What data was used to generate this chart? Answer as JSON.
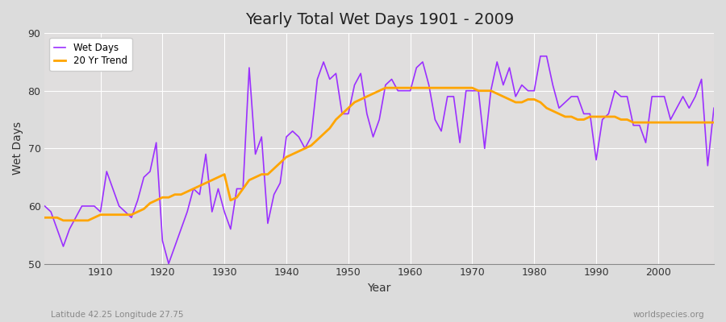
{
  "title": "Yearly Total Wet Days 1901 - 2009",
  "xlabel": "Year",
  "ylabel": "Wet Days",
  "lat_lon_label": "Latitude 42.25 Longitude 27.75",
  "watermark": "worldspecies.org",
  "ylim": [
    50,
    90
  ],
  "xlim": [
    1901,
    2009
  ],
  "yticks": [
    50,
    60,
    70,
    80,
    90
  ],
  "xticks": [
    1910,
    1920,
    1930,
    1940,
    1950,
    1960,
    1970,
    1980,
    1990,
    2000
  ],
  "wet_days_color": "#9B30FF",
  "trend_color": "#FFA500",
  "background_color": "#DCDCDC",
  "plot_bg_color": "#E0DEDE",
  "grid_color": "#FFFFFF",
  "wet_days": [
    60,
    59,
    56,
    53,
    56,
    58,
    60,
    60,
    60,
    59,
    66,
    63,
    60,
    59,
    58,
    61,
    65,
    66,
    71,
    54,
    50,
    53,
    56,
    59,
    63,
    62,
    69,
    59,
    63,
    59,
    56,
    63,
    63,
    84,
    69,
    72,
    57,
    62,
    64,
    72,
    73,
    72,
    70,
    72,
    82,
    85,
    82,
    83,
    76,
    76,
    81,
    83,
    76,
    72,
    75,
    81,
    82,
    80,
    80,
    80,
    84,
    85,
    81,
    75,
    73,
    79,
    79,
    71,
    80,
    80,
    80,
    70,
    80,
    85,
    81,
    84,
    79,
    81,
    80,
    80,
    86,
    86,
    81,
    77,
    78,
    79,
    79,
    76,
    76,
    68,
    75,
    76,
    80,
    79,
    79,
    74,
    74,
    71,
    79,
    79,
    79,
    75,
    77,
    79,
    77,
    79,
    82,
    67,
    77
  ],
  "trend": [
    58.0,
    58.0,
    58.0,
    57.5,
    57.5,
    57.5,
    57.5,
    57.5,
    58.0,
    58.5,
    58.5,
    58.5,
    58.5,
    58.5,
    58.5,
    59.0,
    59.5,
    60.5,
    61.0,
    61.5,
    61.5,
    62.0,
    62.0,
    62.5,
    63.0,
    63.5,
    64.0,
    64.5,
    65.0,
    65.5,
    61.0,
    61.5,
    63.0,
    64.5,
    65.0,
    65.5,
    65.5,
    66.5,
    67.5,
    68.5,
    69.0,
    69.5,
    70.0,
    70.5,
    71.5,
    72.5,
    73.5,
    75.0,
    76.0,
    77.0,
    78.0,
    78.5,
    79.0,
    79.5,
    80.0,
    80.5,
    80.5,
    80.5,
    80.5,
    80.5,
    80.5,
    80.5,
    80.5,
    80.5,
    80.5,
    80.5,
    80.5,
    80.5,
    80.5,
    80.5,
    80.0,
    80.0,
    80.0,
    79.5,
    79.0,
    78.5,
    78.0,
    78.0,
    78.5,
    78.5,
    78.0,
    77.0,
    76.5,
    76.0,
    75.5,
    75.5,
    75.0,
    75.0,
    75.5,
    75.5,
    75.5,
    75.5,
    75.5,
    75.0,
    75.0,
    74.5,
    74.5,
    74.5,
    74.5,
    74.5,
    74.5,
    74.5,
    74.5,
    74.5,
    74.5,
    74.5,
    74.5,
    74.5,
    74.5
  ]
}
